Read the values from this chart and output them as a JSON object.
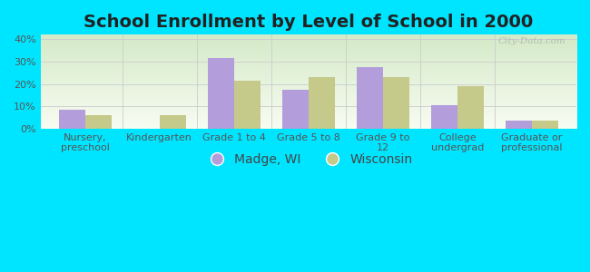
{
  "title": "School Enrollment by Level of School in 2000",
  "categories": [
    "Nursery,\npreschool",
    "Kindergarten",
    "Grade 1 to 4",
    "Grade 5 to 8",
    "Grade 9 to\n12",
    "College\nundergrad",
    "Graduate or\nprofessional"
  ],
  "madge_values": [
    8.5,
    0.0,
    31.5,
    17.5,
    27.5,
    10.5,
    3.5
  ],
  "wisconsin_values": [
    6.0,
    6.0,
    21.5,
    23.0,
    23.0,
    19.0,
    3.5
  ],
  "madge_color": "#b39ddb",
  "wisconsin_color": "#c5c98a",
  "background_color": "#00e5ff",
  "gradient_colors": [
    "#d4eac8",
    "#eef5e8",
    "#f8fcf2"
  ],
  "ylim": [
    0,
    42
  ],
  "yticks": [
    0,
    10,
    20,
    30,
    40
  ],
  "ytick_labels": [
    "0%",
    "10%",
    "20%",
    "30%",
    "40%"
  ],
  "legend_madge": "Madge, WI",
  "legend_wisconsin": "Wisconsin",
  "bar_width": 0.35,
  "title_fontsize": 14,
  "tick_fontsize": 8,
  "legend_fontsize": 10,
  "watermark": "City-Data.com"
}
